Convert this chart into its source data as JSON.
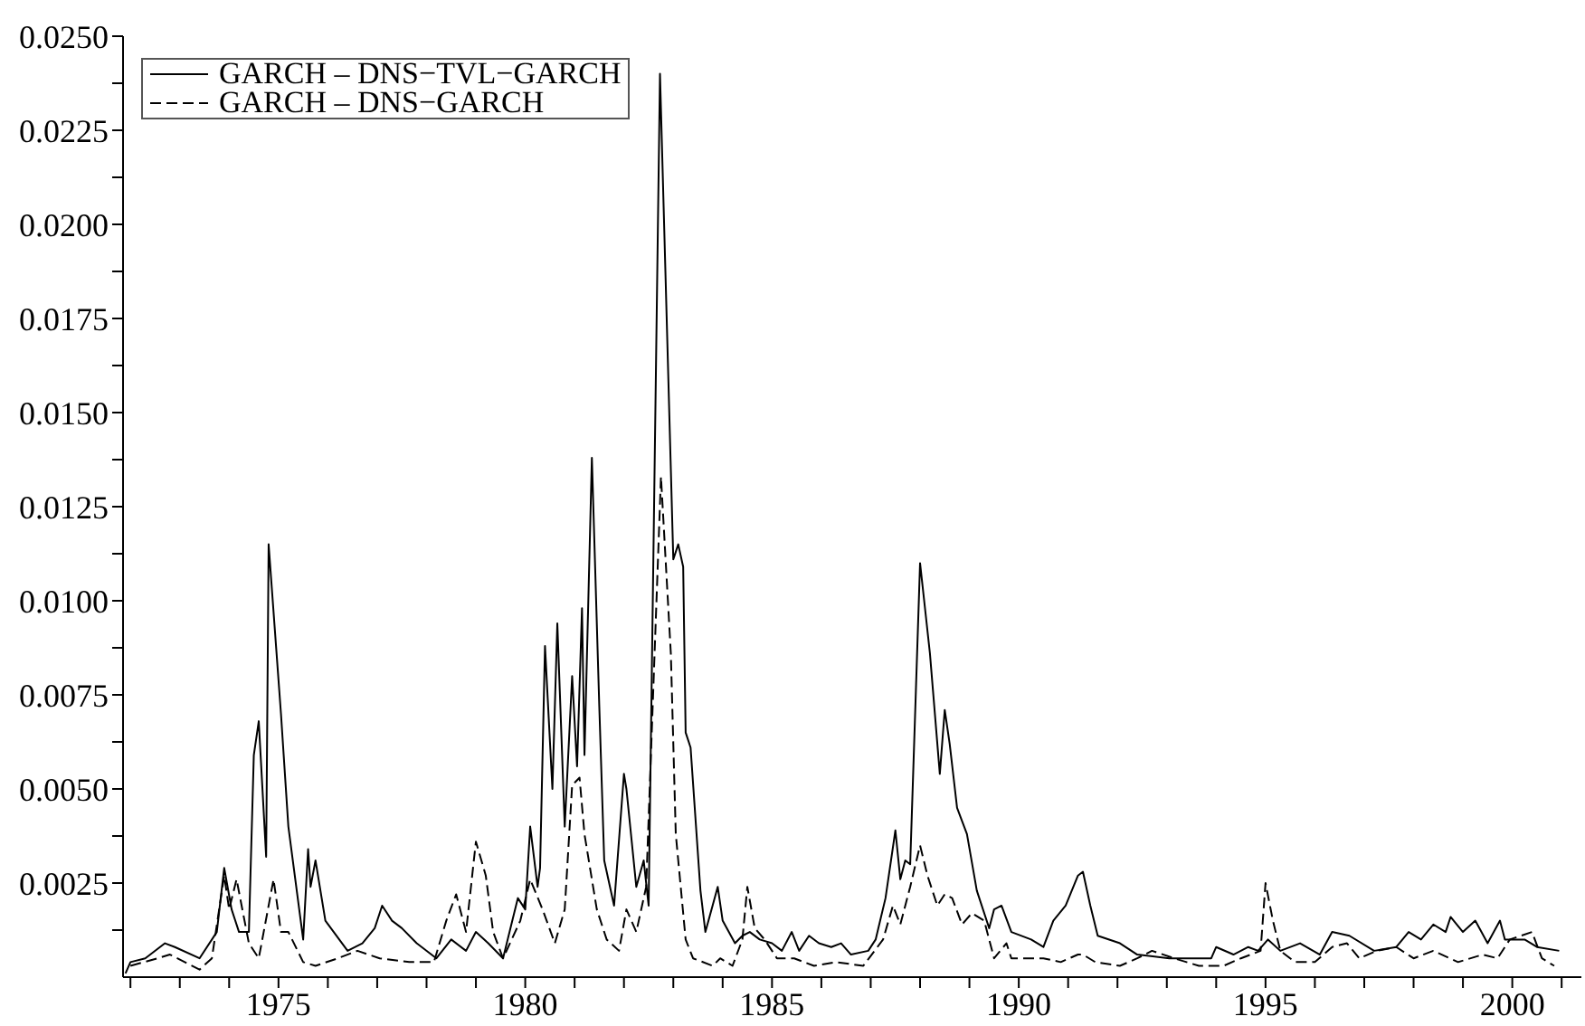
{
  "chart_data": {
    "type": "line",
    "xlim": [
      1971.85,
      2001.4
    ],
    "ylim": [
      0,
      0.025
    ],
    "xticks": [
      {
        "value": 1972,
        "label": null
      },
      {
        "value": 1973,
        "label": null
      },
      {
        "value": 1974,
        "label": null
      },
      1975,
      {
        "value": 1976,
        "label": null
      },
      {
        "value": 1977,
        "label": null
      },
      {
        "value": 1978,
        "label": null
      },
      {
        "value": 1979,
        "label": null
      },
      1980,
      {
        "value": 1981,
        "label": null
      },
      {
        "value": 1982,
        "label": null
      },
      {
        "value": 1983,
        "label": null
      },
      {
        "value": 1984,
        "label": null
      },
      1985,
      {
        "value": 1986,
        "label": null
      },
      {
        "value": 1987,
        "label": null
      },
      {
        "value": 1988,
        "label": null
      },
      {
        "value": 1989,
        "label": null
      },
      1990,
      {
        "value": 1991,
        "label": null
      },
      {
        "value": 1992,
        "label": null
      },
      {
        "value": 1993,
        "label": null
      },
      {
        "value": 1994,
        "label": null
      },
      1995,
      {
        "value": 1996,
        "label": null
      },
      {
        "value": 1997,
        "label": null
      },
      {
        "value": 1998,
        "label": null
      },
      {
        "value": 1999,
        "label": null
      },
      2000,
      {
        "value": 2001,
        "label": null
      }
    ],
    "yticks": [
      {
        "value": 0.00125,
        "label": null
      },
      {
        "value": 0.0025,
        "label": "0.0025"
      },
      {
        "value": 0.00375,
        "label": null
      },
      {
        "value": 0.005,
        "label": "0.0050"
      },
      {
        "value": 0.00625,
        "label": null
      },
      {
        "value": 0.0075,
        "label": "0.0075"
      },
      {
        "value": 0.00875,
        "label": null
      },
      {
        "value": 0.01,
        "label": "0.0100"
      },
      {
        "value": 0.01125,
        "label": null
      },
      {
        "value": 0.0125,
        "label": "0.0125"
      },
      {
        "value": 0.01375,
        "label": null
      },
      {
        "value": 0.015,
        "label": "0.0150"
      },
      {
        "value": 0.01625,
        "label": null
      },
      {
        "value": 0.0175,
        "label": "0.0175"
      },
      {
        "value": 0.01875,
        "label": null
      },
      {
        "value": 0.02,
        "label": "0.0200"
      },
      {
        "value": 0.02125,
        "label": null
      },
      {
        "value": 0.0225,
        "label": "0.0225"
      },
      {
        "value": 0.02375,
        "label": null
      },
      {
        "value": 0.025,
        "label": "0.0250"
      }
    ],
    "grid": false,
    "legend": "top left",
    "marker": "none",
    "series": [
      {
        "name": "GARCH – DNS−TVL−GARCH",
        "color": "#000000",
        "line_style": "solid",
        "x": [
          1971.9,
          1972.0,
          1972.3,
          1972.7,
          1972.9,
          1973.4,
          1973.75,
          1973.9,
          1974.05,
          1974.2,
          1974.4,
          1974.5,
          1974.6,
          1974.75,
          1974.8,
          1975.05,
          1975.2,
          1975.5,
          1975.6,
          1975.65,
          1975.75,
          1975.95,
          1976.4,
          1976.7,
          1976.95,
          1977.1,
          1977.3,
          1977.5,
          1977.8,
          1978.2,
          1978.5,
          1978.8,
          1979.0,
          1979.25,
          1979.55,
          1979.85,
          1980.0,
          1980.1,
          1980.25,
          1980.3,
          1980.4,
          1980.55,
          1980.65,
          1980.8,
          1980.95,
          1981.05,
          1981.15,
          1981.2,
          1981.35,
          1981.5,
          1981.6,
          1981.8,
          1982.0,
          1982.05,
          1982.25,
          1982.4,
          1982.5,
          1982.73,
          1983.0,
          1983.1,
          1983.2,
          1983.25,
          1983.35,
          1983.55,
          1983.65,
          1983.9,
          1984.0,
          1984.25,
          1984.4,
          1984.55,
          1984.75,
          1985.0,
          1985.2,
          1985.4,
          1985.55,
          1985.75,
          1985.95,
          1986.2,
          1986.4,
          1986.6,
          1986.95,
          1987.1,
          1987.3,
          1987.5,
          1987.6,
          1987.7,
          1987.8,
          1988.0,
          1988.2,
          1988.4,
          1988.5,
          1988.6,
          1988.75,
          1988.95,
          1989.15,
          1989.4,
          1989.5,
          1989.65,
          1989.85,
          1990.25,
          1990.5,
          1990.7,
          1990.95,
          1991.2,
          1991.3,
          1991.45,
          1991.6,
          1992.05,
          1992.4,
          1993.05,
          1993.9,
          1994.0,
          1994.35,
          1994.65,
          1994.85,
          1995.05,
          1995.3,
          1995.7,
          1996.1,
          1996.35,
          1996.7,
          1997.2,
          1997.65,
          1997.9,
          1998.15,
          1998.4,
          1998.65,
          1998.75,
          1999.0,
          1999.25,
          1999.5,
          1999.75,
          1999.85,
          2000.25,
          2000.5,
          2000.95
        ],
        "values": [
          0.0001,
          0.0004,
          0.0005,
          0.0009,
          0.0008,
          0.0005,
          0.0012,
          0.0029,
          0.0018,
          0.0012,
          0.0012,
          0.0059,
          0.0068,
          0.0032,
          0.0115,
          0.007,
          0.004,
          0.001,
          0.0034,
          0.0024,
          0.0031,
          0.0015,
          0.0007,
          0.0009,
          0.0013,
          0.0019,
          0.0015,
          0.0013,
          0.0009,
          0.0005,
          0.001,
          0.0007,
          0.0012,
          0.0009,
          0.0005,
          0.0021,
          0.0018,
          0.004,
          0.0024,
          0.0029,
          0.0088,
          0.005,
          0.0094,
          0.004,
          0.008,
          0.0056,
          0.0098,
          0.0059,
          0.0138,
          0.0072,
          0.0031,
          0.0019,
          0.0054,
          0.005,
          0.0024,
          0.0031,
          0.0019,
          0.024,
          0.0111,
          0.0115,
          0.0109,
          0.0065,
          0.0061,
          0.0023,
          0.0012,
          0.0024,
          0.0015,
          0.0009,
          0.0011,
          0.0012,
          0.001,
          0.0009,
          0.0007,
          0.0012,
          0.0007,
          0.0011,
          0.0009,
          0.0008,
          0.0009,
          0.0006,
          0.0007,
          0.001,
          0.0021,
          0.0039,
          0.0026,
          0.0031,
          0.003,
          0.011,
          0.0086,
          0.0054,
          0.0071,
          0.0062,
          0.0045,
          0.0038,
          0.0023,
          0.0013,
          0.0018,
          0.0019,
          0.0012,
          0.001,
          0.0008,
          0.0015,
          0.0019,
          0.0027,
          0.0028,
          0.0019,
          0.0011,
          0.0009,
          0.0006,
          0.0005,
          0.0005,
          0.0008,
          0.0006,
          0.0008,
          0.0007,
          0.001,
          0.0007,
          0.0009,
          0.0006,
          0.0012,
          0.0011,
          0.0007,
          0.0008,
          0.0012,
          0.001,
          0.0014,
          0.0012,
          0.0016,
          0.0012,
          0.0015,
          0.0009,
          0.0015,
          0.001,
          0.001,
          0.0008,
          0.0007
        ]
      },
      {
        "name": "GARCH – DNS−GARCH",
        "color": "#000000",
        "line_style": "dashed",
        "x": [
          1972.0,
          1972.55,
          1972.8,
          1973.4,
          1973.65,
          1973.9,
          1974.0,
          1974.15,
          1974.4,
          1974.6,
          1974.9,
          1975.05,
          1975.2,
          1975.5,
          1975.75,
          1976.2,
          1976.6,
          1977.05,
          1977.65,
          1978.15,
          1978.4,
          1978.6,
          1978.8,
          1979.0,
          1979.2,
          1979.35,
          1979.55,
          1979.9,
          1980.1,
          1980.35,
          1980.6,
          1980.8,
          1980.95,
          1981.1,
          1981.2,
          1981.45,
          1981.65,
          1981.9,
          1982.05,
          1982.25,
          1982.45,
          1982.75,
          1982.95,
          1983.05,
          1983.25,
          1983.4,
          1983.8,
          1983.95,
          1984.2,
          1984.4,
          1984.5,
          1984.65,
          1984.85,
          1985.1,
          1985.45,
          1985.85,
          1986.3,
          1986.85,
          1987.25,
          1987.45,
          1987.6,
          1987.8,
          1988.0,
          1988.15,
          1988.35,
          1988.5,
          1988.65,
          1988.85,
          1989.05,
          1989.3,
          1989.5,
          1989.75,
          1989.85,
          1990.25,
          1990.5,
          1990.85,
          1991.2,
          1991.3,
          1991.55,
          1992.05,
          1992.4,
          1992.7,
          1993.15,
          1993.65,
          1994.15,
          1994.5,
          1994.9,
          1995.0,
          1995.15,
          1995.3,
          1995.6,
          1996.0,
          1996.35,
          1996.65,
          1996.9,
          1997.25,
          1997.65,
          1998.0,
          1998.4,
          1998.9,
          1999.4,
          1999.7,
          1999.95,
          2000.4,
          2000.6,
          2000.85
        ],
        "values": [
          0.0003,
          0.0005,
          0.0006,
          0.0002,
          0.0005,
          0.0027,
          0.0018,
          0.0026,
          0.0009,
          0.0005,
          0.0026,
          0.0012,
          0.0012,
          0.0004,
          0.0003,
          0.0005,
          0.0007,
          0.0005,
          0.0004,
          0.0004,
          0.0015,
          0.0022,
          0.0012,
          0.0036,
          0.0027,
          0.0012,
          0.0005,
          0.0015,
          0.0026,
          0.0018,
          0.0009,
          0.0018,
          0.0051,
          0.0053,
          0.0038,
          0.0018,
          0.001,
          0.0007,
          0.0018,
          0.0012,
          0.0024,
          0.0133,
          0.0086,
          0.0038,
          0.001,
          0.0005,
          0.0003,
          0.0005,
          0.0003,
          0.001,
          0.0024,
          0.0013,
          0.001,
          0.0005,
          0.0005,
          0.0003,
          0.0004,
          0.0003,
          0.001,
          0.0019,
          0.0014,
          0.0024,
          0.0035,
          0.0027,
          0.0019,
          0.0022,
          0.0021,
          0.0014,
          0.0017,
          0.0015,
          0.0005,
          0.0009,
          0.0005,
          0.0005,
          0.0005,
          0.0004,
          0.0006,
          0.0006,
          0.0004,
          0.0003,
          0.0005,
          0.0007,
          0.0005,
          0.0003,
          0.0003,
          0.0005,
          0.0007,
          0.0025,
          0.0015,
          0.0007,
          0.0004,
          0.0004,
          0.0008,
          0.0009,
          0.0005,
          0.0007,
          0.0008,
          0.0005,
          0.0007,
          0.0004,
          0.0006,
          0.0005,
          0.001,
          0.0012,
          0.0005,
          0.0003
        ]
      }
    ]
  }
}
